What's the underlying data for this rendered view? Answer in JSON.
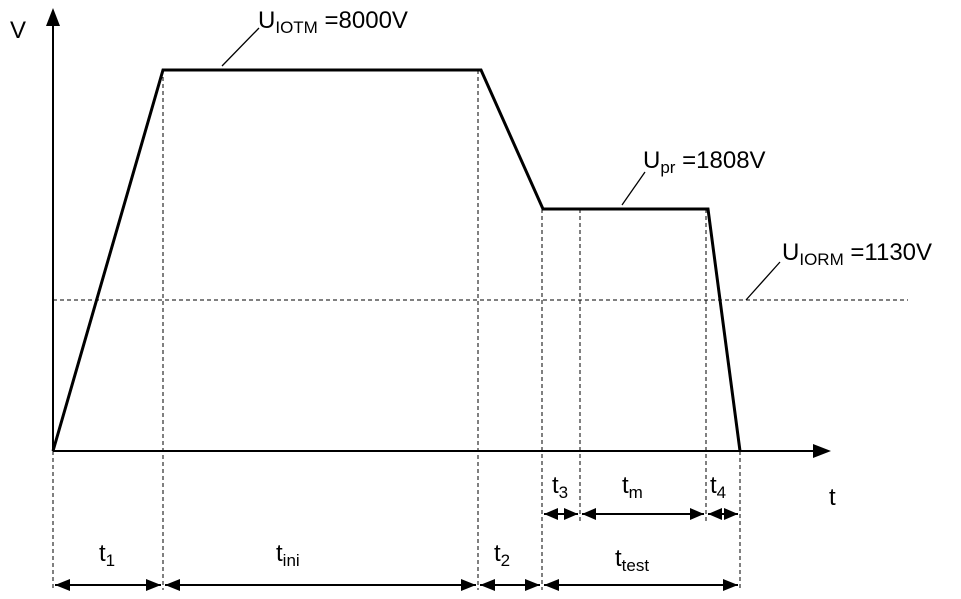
{
  "axes": {
    "y_label": "V",
    "x_label": "t"
  },
  "levels": {
    "iotm": {
      "base": "U",
      "sub": "IOTM",
      "value": " =8000V"
    },
    "pr": {
      "base": "U",
      "sub": "pr",
      "value": " =1808V"
    },
    "iorm": {
      "base": "U",
      "sub": "IORM",
      "value": " =1130V"
    }
  },
  "intervals": {
    "t1": {
      "base": "t",
      "sub": "1"
    },
    "tini": {
      "base": "t",
      "sub": "ini"
    },
    "t2": {
      "base": "t",
      "sub": "2"
    },
    "t3": {
      "base": "t",
      "sub": "3"
    },
    "tm": {
      "base": "t",
      "sub": "m"
    },
    "t4": {
      "base": "t",
      "sub": "4"
    },
    "ttest": {
      "base": "t",
      "sub": "test"
    }
  }
}
